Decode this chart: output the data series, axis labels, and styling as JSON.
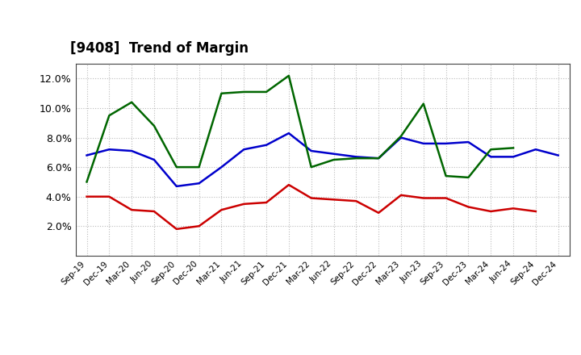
{
  "title": "[9408]  Trend of Margin",
  "x_labels": [
    "Sep-19",
    "Dec-19",
    "Mar-20",
    "Jun-20",
    "Sep-20",
    "Dec-20",
    "Mar-21",
    "Jun-21",
    "Sep-21",
    "Dec-21",
    "Mar-22",
    "Jun-22",
    "Sep-22",
    "Dec-22",
    "Mar-23",
    "Jun-23",
    "Sep-23",
    "Dec-23",
    "Mar-24",
    "Jun-24",
    "Sep-24",
    "Dec-24"
  ],
  "ordinary_income": [
    6.8,
    7.2,
    7.1,
    6.5,
    4.7,
    4.9,
    6.0,
    7.2,
    7.5,
    8.3,
    7.1,
    6.9,
    6.7,
    6.6,
    8.0,
    7.6,
    7.6,
    7.7,
    6.7,
    6.7,
    7.2,
    6.8
  ],
  "net_income": [
    4.0,
    4.0,
    3.1,
    3.0,
    1.8,
    2.0,
    3.1,
    3.5,
    3.6,
    4.8,
    3.9,
    3.8,
    3.7,
    2.9,
    4.1,
    3.9,
    3.9,
    3.3,
    3.0,
    3.2,
    3.0,
    null
  ],
  "operating_cashflow": [
    5.0,
    9.5,
    10.4,
    8.8,
    6.0,
    6.0,
    11.0,
    11.1,
    11.1,
    12.2,
    6.0,
    6.5,
    6.6,
    6.6,
    8.1,
    10.3,
    5.4,
    5.3,
    7.2,
    7.3,
    null,
    null
  ],
  "ylim": [
    0,
    13
  ],
  "yticks": [
    2.0,
    4.0,
    6.0,
    8.0,
    10.0,
    12.0
  ],
  "colors": {
    "ordinary_income": "#0000cc",
    "net_income": "#cc0000",
    "operating_cashflow": "#006600"
  },
  "background_color": "#ffffff",
  "grid_color": "#aaaaaa"
}
